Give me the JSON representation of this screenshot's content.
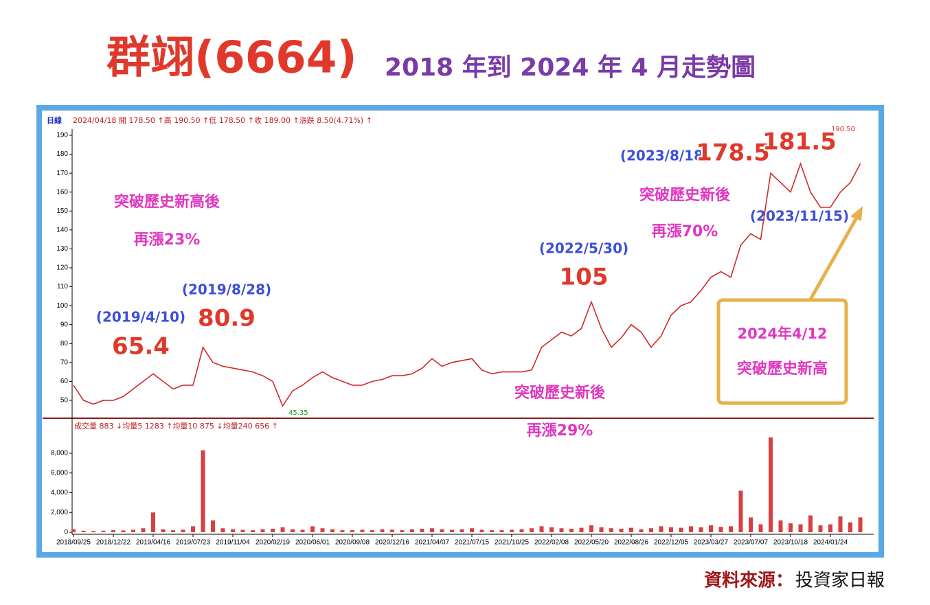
{
  "title": {
    "name": "群翊(6664)",
    "period": "2018 年到 2024 年 4 月走勢圖"
  },
  "chart_data": [
    {
      "type": "line",
      "info_label": "日線",
      "info": "2024/04/18 開 178.50 ↑高 190.50 ↑低 178.50 ↑收 189.00 ↑漲跌 8.50(4.71%) ↑",
      "values": [
        58,
        50,
        48,
        50,
        50,
        52,
        56,
        60,
        64,
        60,
        56,
        58,
        58,
        78,
        70,
        68,
        67,
        66,
        65,
        63,
        60,
        47,
        55,
        58,
        62,
        65,
        62,
        60,
        58,
        58,
        60,
        61,
        63,
        63,
        64,
        67,
        72,
        68,
        70,
        71,
        72,
        66,
        64,
        65,
        65,
        65,
        66,
        78,
        82,
        86,
        84,
        88,
        102,
        88,
        78,
        83,
        90,
        86,
        78,
        84,
        95,
        100,
        102,
        108,
        115,
        118,
        115,
        132,
        138,
        135,
        170,
        165,
        160,
        175,
        160,
        152,
        152,
        160,
        165,
        175
      ],
      "color": "#d02828",
      "ylim": [
        42,
        192
      ],
      "yticks": [
        50,
        60,
        70,
        80,
        90,
        100,
        110,
        120,
        130,
        140,
        150,
        160,
        170,
        180,
        190
      ],
      "high_label": "190.50",
      "low_label": "45.35"
    },
    {
      "type": "bar",
      "info": "成交量 883 ↓均量5 1283 ↑均量10 875 ↓均量240 656 ↑",
      "categories": [
        "2018/09/25",
        null,
        null,
        null,
        "2018/12/22",
        null,
        null,
        null,
        "2019/04/16",
        null,
        null,
        null,
        "2019/07/23",
        null,
        null,
        null,
        "2019/11/04",
        null,
        null,
        null,
        "2020/02/19",
        null,
        null,
        null,
        "2020/06/01",
        null,
        null,
        null,
        "2020/09/08",
        null,
        null,
        null,
        "2020/12/16",
        null,
        null,
        null,
        "2021/04/07",
        null,
        null,
        null,
        "2021/07/15",
        null,
        null,
        null,
        "2021/10/25",
        null,
        null,
        null,
        "2022/02/08",
        null,
        null,
        null,
        "2022/05/20",
        null,
        null,
        null,
        "2022/08/26",
        null,
        null,
        null,
        "2022/12/05",
        null,
        null,
        null,
        "2023/03/27",
        null,
        null,
        null,
        "2023/07/07",
        null,
        null,
        null,
        "2023/10/18",
        null,
        null,
        null,
        "2024/01/24",
        null,
        null,
        null
      ],
      "values": [
        300,
        150,
        120,
        150,
        200,
        180,
        250,
        400,
        2000,
        300,
        200,
        250,
        600,
        8300,
        1200,
        400,
        300,
        250,
        200,
        300,
        350,
        500,
        300,
        250,
        600,
        400,
        300,
        200,
        200,
        250,
        200,
        300,
        250,
        200,
        300,
        350,
        400,
        300,
        250,
        300,
        400,
        250,
        200,
        200,
        250,
        300,
        400,
        600,
        500,
        400,
        350,
        450,
        700,
        500,
        400,
        350,
        450,
        300,
        400,
        600,
        500,
        450,
        600,
        500,
        700,
        550,
        600,
        4200,
        1500,
        800,
        9600,
        1200,
        900,
        800,
        1700,
        700,
        800,
        1600,
        1000,
        1500
      ],
      "color": "#d84040",
      "ylim": [
        0,
        10600
      ],
      "yticks": [
        0,
        {
          "value": 2000,
          "label": "2,000"
        },
        {
          "value": 4000,
          "label": "4,000"
        },
        {
          "value": 6000,
          "label": "6,000"
        },
        {
          "value": 8000,
          "label": "8,000"
        }
      ]
    }
  ],
  "annotations": {
    "a1_line1": "突破歷史新高後",
    "a1_line2": "再漲23%",
    "d1": "(2019/4/10)",
    "p1": "65.4",
    "d2": "(2019/8/28)",
    "p2": "80.9",
    "d3": "(2022/5/30)",
    "p3": "105",
    "a2_line1": "突破歷史新後",
    "a2_line2": "再漲29%",
    "d4": "(2023/8/18)",
    "p4": "178.5",
    "p5": "181.5",
    "a3_line1": "突破歷史新後",
    "a3_line2": "再漲70%",
    "d5": "(2023/11/15)",
    "box_line1": "2024年4/12",
    "box_line2": "突破歷史新高"
  },
  "source": {
    "label": "資料來源：",
    "name": "投資家日報"
  }
}
